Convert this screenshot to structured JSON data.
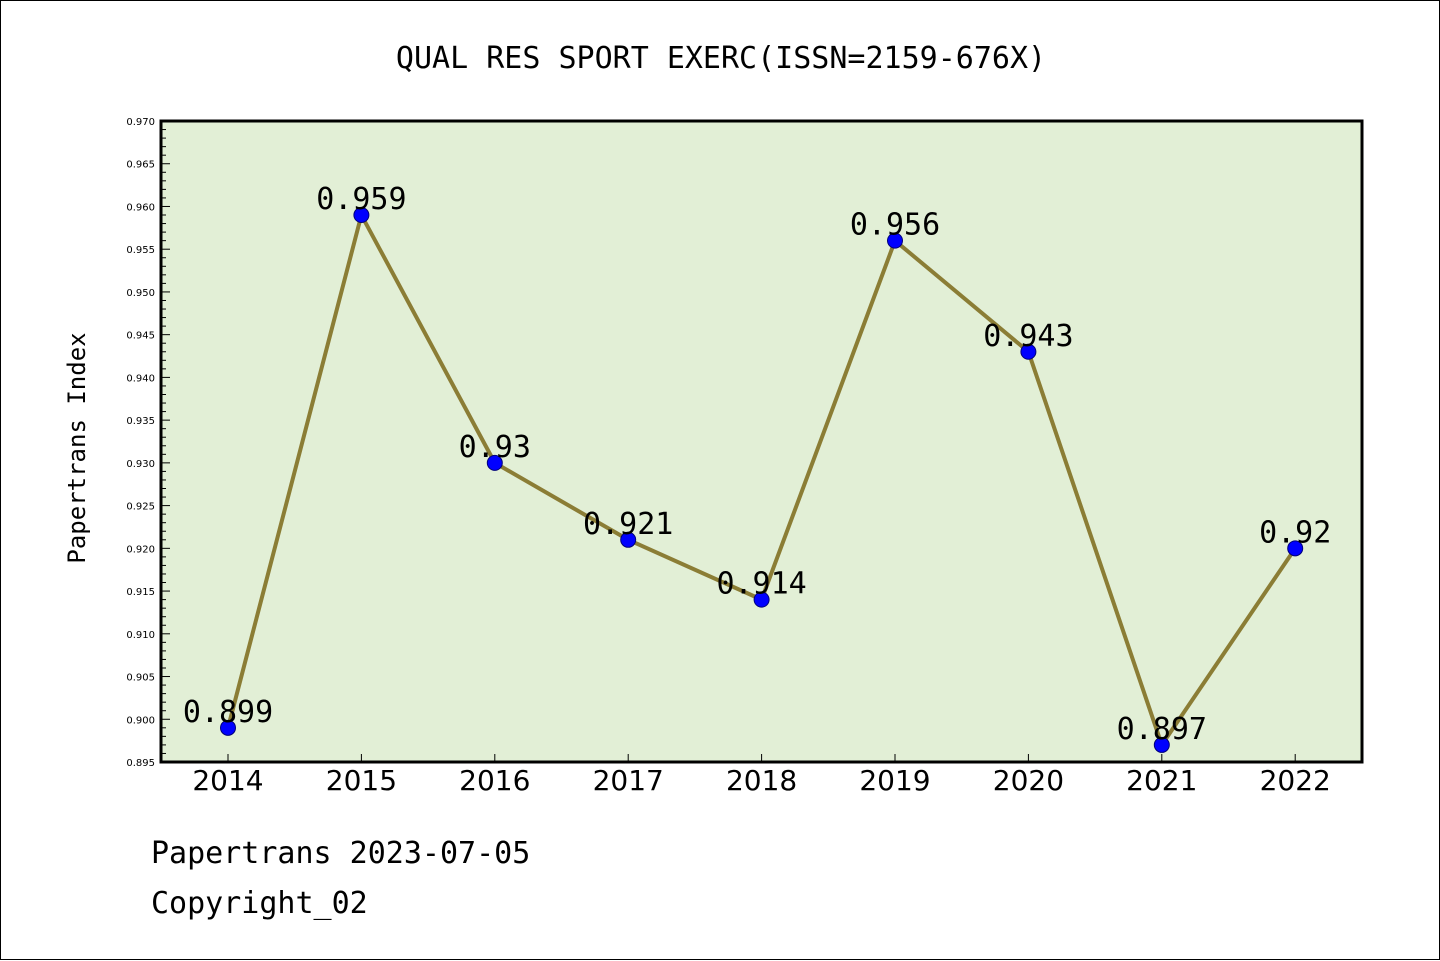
{
  "chart_data": {
    "type": "line",
    "title": "QUAL RES SPORT EXERC(ISSN=2159-676X)",
    "xlabel": "",
    "ylabel": "Papertrans Index",
    "categories": [
      "2014",
      "2015",
      "2016",
      "2017",
      "2018",
      "2019",
      "2020",
      "2021",
      "2022"
    ],
    "series": [
      {
        "values": [
          0.899,
          0.959,
          0.93,
          0.921,
          0.914,
          0.956,
          0.943,
          0.897,
          0.92
        ],
        "data_labels": [
          "0.899",
          "0.959",
          "0.93",
          "0.921",
          "0.914",
          "0.956",
          "0.943",
          "0.897",
          "0.92"
        ]
      }
    ],
    "ylim": [
      0.895,
      0.97
    ],
    "yticks": [
      "0.895",
      "0.900",
      "0.905",
      "0.910",
      "0.915",
      "0.920",
      "0.925",
      "0.930",
      "0.935",
      "0.940",
      "0.945",
      "0.950",
      "0.955",
      "0.960",
      "0.965",
      "0.970"
    ],
    "grid": false,
    "legend": "none",
    "colors": {
      "plot_background": "#e2efd6",
      "line": "#8b7d35",
      "marker": "#0000ff",
      "marker_edge": "#00007a"
    }
  },
  "footer": {
    "date_text": "Papertrans 2023-07-05",
    "copyright_text": "Copyright_02"
  }
}
